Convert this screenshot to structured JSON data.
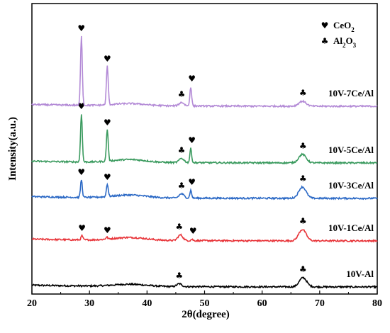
{
  "chart_data": {
    "type": "line",
    "xlabel": "2θ(degree)",
    "ylabel": "Intensity(a.u.)",
    "xlim": [
      20,
      80
    ],
    "xticks": [
      "20",
      "30",
      "40",
      "50",
      "60",
      "70",
      "80"
    ],
    "legend": {
      "placement": "top-right",
      "entries": [
        {
          "symbol": "♥",
          "label": "CeO",
          "sub": "2"
        },
        {
          "symbol": "♣",
          "label": "Al",
          "sub": "2",
          "label2": "O",
          "sub2": "3"
        }
      ]
    },
    "series": [
      {
        "name": "10V-Al",
        "color": "#000000",
        "baseline": 5,
        "features": {
          "amorphous_hump": [
            37,
            3
          ],
          "peaks": [
            [
              45.6,
              4
            ],
            [
              67.1,
              13
            ]
          ]
        },
        "markers": [
          {
            "x": 45.6,
            "symbol": "♣"
          },
          {
            "x": 67.1,
            "symbol": "♣"
          }
        ]
      },
      {
        "name": "10V-1Ce/Al",
        "color": "#e8353a",
        "baseline": 70,
        "features": {
          "amorphous_hump": [
            37,
            4
          ],
          "peaks": [
            [
              28.7,
              6
            ],
            [
              33,
              3
            ],
            [
              45.8,
              8
            ],
            [
              47.8,
              2
            ],
            [
              67.0,
              16
            ]
          ]
        },
        "markers": [
          {
            "x": 28.7,
            "symbol": "♥"
          },
          {
            "x": 33.1,
            "symbol": "♥"
          },
          {
            "x": 45.6,
            "symbol": "♣"
          },
          {
            "x": 48.0,
            "symbol": "♥"
          },
          {
            "x": 67.1,
            "symbol": "♣"
          }
        ]
      },
      {
        "name": "10V-3Ce/Al",
        "color": "#2a68c5",
        "baseline": 130,
        "features": {
          "amorphous_hump": [
            37,
            4
          ],
          "peaks": [
            [
              28.6,
              25
            ],
            [
              33.1,
              18
            ],
            [
              46.0,
              6
            ],
            [
              47.6,
              11
            ],
            [
              67.0,
              16
            ]
          ]
        },
        "markers": [
          {
            "x": 28.6,
            "symbol": "♥"
          },
          {
            "x": 33.1,
            "symbol": "♥"
          },
          {
            "x": 46.0,
            "symbol": "♣"
          },
          {
            "x": 47.8,
            "symbol": "♥"
          },
          {
            "x": 67.1,
            "symbol": "♣"
          }
        ]
      },
      {
        "name": "10V-5Ce/Al",
        "color": "#3a9a5e",
        "baseline": 180,
        "features": {
          "amorphous_hump": [
            37,
            4
          ],
          "peaks": [
            [
              28.6,
              68
            ],
            [
              33.1,
              45
            ],
            [
              46.0,
              6
            ],
            [
              47.6,
              20
            ],
            [
              67.0,
              12
            ]
          ]
        },
        "markers": [
          {
            "x": 28.6,
            "symbol": "♥"
          },
          {
            "x": 33.1,
            "symbol": "♥"
          },
          {
            "x": 46.0,
            "symbol": "♣"
          },
          {
            "x": 47.8,
            "symbol": "♥"
          },
          {
            "x": 67.1,
            "symbol": "♣"
          }
        ]
      },
      {
        "name": "10V-7Ce/Al",
        "color": "#b38ad6",
        "baseline": 260,
        "features": {
          "amorphous_hump": [
            37,
            3
          ],
          "peaks": [
            [
              28.6,
              98
            ],
            [
              33.1,
              55
            ],
            [
              46.0,
              5
            ],
            [
              47.6,
              27
            ],
            [
              67.0,
              7
            ]
          ]
        },
        "markers": [
          {
            "x": 28.6,
            "symbol": "♥"
          },
          {
            "x": 33.1,
            "symbol": "♥"
          },
          {
            "x": 46.0,
            "symbol": "♣"
          },
          {
            "x": 47.8,
            "symbol": "♥"
          },
          {
            "x": 67.1,
            "symbol": "♣"
          }
        ]
      }
    ]
  }
}
